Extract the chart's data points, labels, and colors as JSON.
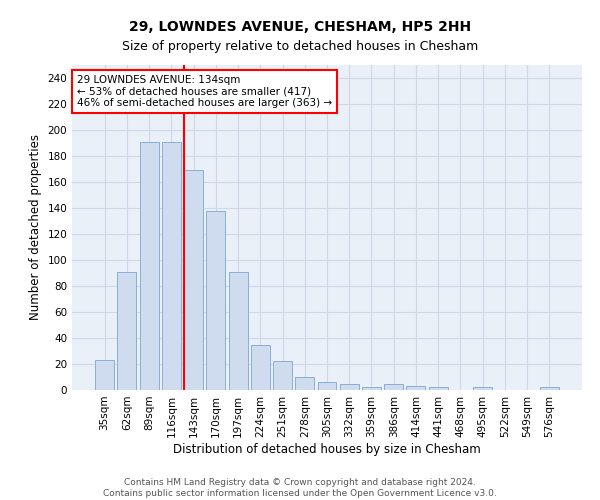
{
  "title": "29, LOWNDES AVENUE, CHESHAM, HP5 2HH",
  "subtitle": "Size of property relative to detached houses in Chesham",
  "xlabel": "Distribution of detached houses by size in Chesham",
  "ylabel": "Number of detached properties",
  "categories": [
    "35sqm",
    "62sqm",
    "89sqm",
    "116sqm",
    "143sqm",
    "170sqm",
    "197sqm",
    "224sqm",
    "251sqm",
    "278sqm",
    "305sqm",
    "332sqm",
    "359sqm",
    "386sqm",
    "414sqm",
    "441sqm",
    "468sqm",
    "495sqm",
    "522sqm",
    "549sqm",
    "576sqm"
  ],
  "values": [
    23,
    91,
    191,
    191,
    169,
    138,
    91,
    35,
    22,
    10,
    6,
    5,
    2,
    5,
    3,
    2,
    0,
    2,
    0,
    0,
    2
  ],
  "bar_color": "#cfdcef",
  "bar_edge_color": "#8aafd4",
  "bar_width": 0.85,
  "ylim": [
    0,
    250
  ],
  "yticks": [
    0,
    20,
    40,
    60,
    80,
    100,
    120,
    140,
    160,
    180,
    200,
    220,
    240
  ],
  "red_line_x": 3.58,
  "annotation_line1": "29 LOWNDES AVENUE: 134sqm",
  "annotation_line2": "← 53% of detached houses are smaller (417)",
  "annotation_line3": "46% of semi-detached houses are larger (363) →",
  "footer_line1": "Contains HM Land Registry data © Crown copyright and database right 2024.",
  "footer_line2": "Contains public sector information licensed under the Open Government Licence v3.0.",
  "title_fontsize": 10,
  "subtitle_fontsize": 9,
  "xlabel_fontsize": 8.5,
  "ylabel_fontsize": 8.5,
  "tick_fontsize": 7.5,
  "footer_fontsize": 6.5,
  "annotation_fontsize": 7.5,
  "grid_color": "#d0d8e8",
  "background_color": "#eaf0f8"
}
